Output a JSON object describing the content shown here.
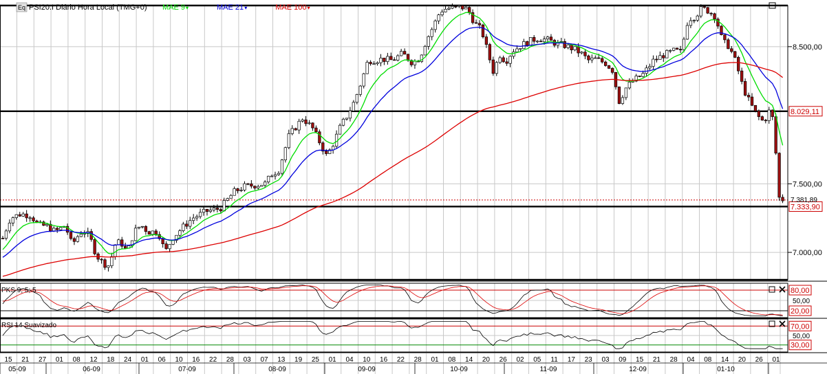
{
  "colors": {
    "grid": "#c8c8c8",
    "frame": "#000000",
    "candle_up": "#ffffff",
    "candle_down": "#a01010",
    "mae9": "#00dd00",
    "mae21": "#0000dd",
    "mae100": "#dd0000",
    "label_red": "#cc0000"
  },
  "header": {
    "icon_text": "Eq",
    "title": "PSI20.I Diário Hora Local (TMG+0)",
    "legend": [
      {
        "name": "MAE 9",
        "color": "#00dd00"
      },
      {
        "name": "MAE 21",
        "color": "#0000dd"
      },
      {
        "name": "MAE 100",
        "color": "#dd0000"
      }
    ]
  },
  "price_panel": {
    "axis_labels": [
      "8.500,00",
      "7.500,00",
      "7.000,00"
    ],
    "axis_values": [
      8500,
      7500,
      7000
    ],
    "y_range": [
      6800,
      8800
    ],
    "levels": [
      {
        "value": 8800,
        "label": ""
      },
      {
        "value": 8029.11,
        "label": "8.029,11"
      },
      {
        "value": 7333.9,
        "label": "7.333,90"
      },
      {
        "value": 6800,
        "label": ""
      }
    ],
    "last_price": {
      "value": 7381.89,
      "label": "7.381,89"
    }
  },
  "pks_panel": {
    "title": "PKS 9; 5; 5",
    "labels": [
      "80,00",
      "50,00",
      "20,00"
    ],
    "values": [
      80,
      50,
      20
    ]
  },
  "rsi_panel": {
    "title": "RSI 14 Suavizado",
    "labels": [
      "70,00",
      "50,00",
      "30,00"
    ],
    "values": [
      70,
      50,
      30
    ]
  },
  "x_axis": {
    "days": [
      "15",
      "21",
      "27",
      "01",
      "08",
      "12",
      "18",
      "24",
      "01",
      "06",
      "10",
      "16",
      "22",
      "28",
      "03",
      "07",
      "13",
      "19",
      "25",
      "01",
      "04",
      "10",
      "16",
      "22",
      "28",
      "01",
      "08",
      "14",
      "20",
      "26",
      "02",
      "05",
      "11",
      "17",
      "23",
      "03",
      "09",
      "15",
      "21",
      "28",
      "04",
      "08",
      "14",
      "20",
      "26",
      "01"
    ],
    "months": [
      "05-09",
      "06-09",
      "07-09",
      "08-09",
      "09-09",
      "10-09",
      "11-09",
      "12-09",
      "01-10"
    ]
  },
  "chart_data": {
    "type": "candlestick",
    "title": "PSI20.I Diário Hora Local (TMG+0)",
    "series": [
      {
        "name": "PSI20.I",
        "close_path": [
          [
            0,
            7050
          ],
          [
            15,
            7250
          ],
          [
            30,
            7280
          ],
          [
            45,
            7270
          ],
          [
            55,
            7200
          ],
          [
            70,
            7190
          ],
          [
            80,
            7150
          ],
          [
            90,
            7180
          ],
          [
            95,
            7200
          ],
          [
            100,
            7120
          ],
          [
            105,
            7050
          ],
          [
            110,
            7100
          ],
          [
            120,
            7160
          ],
          [
            130,
            7120
          ],
          [
            140,
            6980
          ],
          [
            150,
            6920
          ],
          [
            160,
            6900
          ],
          [
            165,
            7050
          ],
          [
            175,
            7080
          ],
          [
            185,
            7000
          ],
          [
            195,
            7150
          ],
          [
            205,
            7200
          ],
          [
            215,
            7150
          ],
          [
            230,
            7150
          ],
          [
            240,
            7000
          ],
          [
            250,
            7100
          ],
          [
            265,
            7180
          ],
          [
            280,
            7250
          ],
          [
            300,
            7300
          ],
          [
            320,
            7320
          ],
          [
            340,
            7440
          ],
          [
            355,
            7480
          ],
          [
            370,
            7490
          ],
          [
            385,
            7500
          ],
          [
            395,
            7570
          ],
          [
            405,
            7600
          ],
          [
            420,
            7850
          ],
          [
            440,
            7980
          ],
          [
            455,
            7900
          ],
          [
            465,
            7800
          ],
          [
            475,
            7700
          ],
          [
            485,
            7800
          ],
          [
            495,
            7920
          ],
          [
            505,
            8000
          ],
          [
            515,
            8100
          ],
          [
            525,
            8240
          ],
          [
            535,
            8400
          ],
          [
            545,
            8400
          ],
          [
            555,
            8410
          ],
          [
            570,
            8400
          ],
          [
            585,
            8450
          ],
          [
            600,
            8380
          ],
          [
            610,
            8420
          ],
          [
            620,
            8550
          ],
          [
            630,
            8650
          ],
          [
            640,
            8760
          ],
          [
            650,
            8780
          ],
          [
            660,
            8780
          ],
          [
            670,
            8790
          ],
          [
            680,
            8770
          ],
          [
            690,
            8670
          ],
          [
            700,
            8620
          ],
          [
            705,
            8530
          ],
          [
            710,
            8440
          ],
          [
            718,
            8300
          ],
          [
            725,
            8450
          ],
          [
            735,
            8390
          ],
          [
            745,
            8470
          ],
          [
            755,
            8500
          ],
          [
            765,
            8530
          ],
          [
            780,
            8560
          ],
          [
            795,
            8550
          ],
          [
            810,
            8520
          ],
          [
            820,
            8510
          ],
          [
            835,
            8480
          ],
          [
            845,
            8450
          ],
          [
            855,
            8400
          ],
          [
            865,
            8410
          ],
          [
            880,
            8380
          ],
          [
            890,
            8330
          ],
          [
            900,
            8100
          ],
          [
            910,
            8200
          ],
          [
            920,
            8250
          ],
          [
            935,
            8300
          ],
          [
            950,
            8400
          ],
          [
            965,
            8440
          ],
          [
            980,
            8470
          ],
          [
            990,
            8460
          ],
          [
            1000,
            8700
          ],
          [
            1010,
            8720
          ],
          [
            1020,
            8780
          ],
          [
            1030,
            8760
          ],
          [
            1040,
            8720
          ],
          [
            1050,
            8540
          ],
          [
            1060,
            8500
          ],
          [
            1070,
            8380
          ],
          [
            1080,
            8200
          ],
          [
            1090,
            8090
          ],
          [
            1100,
            8000
          ],
          [
            1110,
            7950
          ],
          [
            1120,
            8050
          ],
          [
            1125,
            7920
          ],
          [
            1132,
            7400
          ],
          [
            1140,
            7380
          ]
        ]
      },
      {
        "name": "MAE 9"
      },
      {
        "name": "MAE 21"
      },
      {
        "name": "MAE 100"
      }
    ],
    "indicators": [
      {
        "name": "PKS 9; 5; 5",
        "levels": [
          80,
          50,
          20
        ]
      },
      {
        "name": "RSI 14 Suavizado",
        "levels": [
          70,
          50,
          30
        ]
      }
    ]
  }
}
